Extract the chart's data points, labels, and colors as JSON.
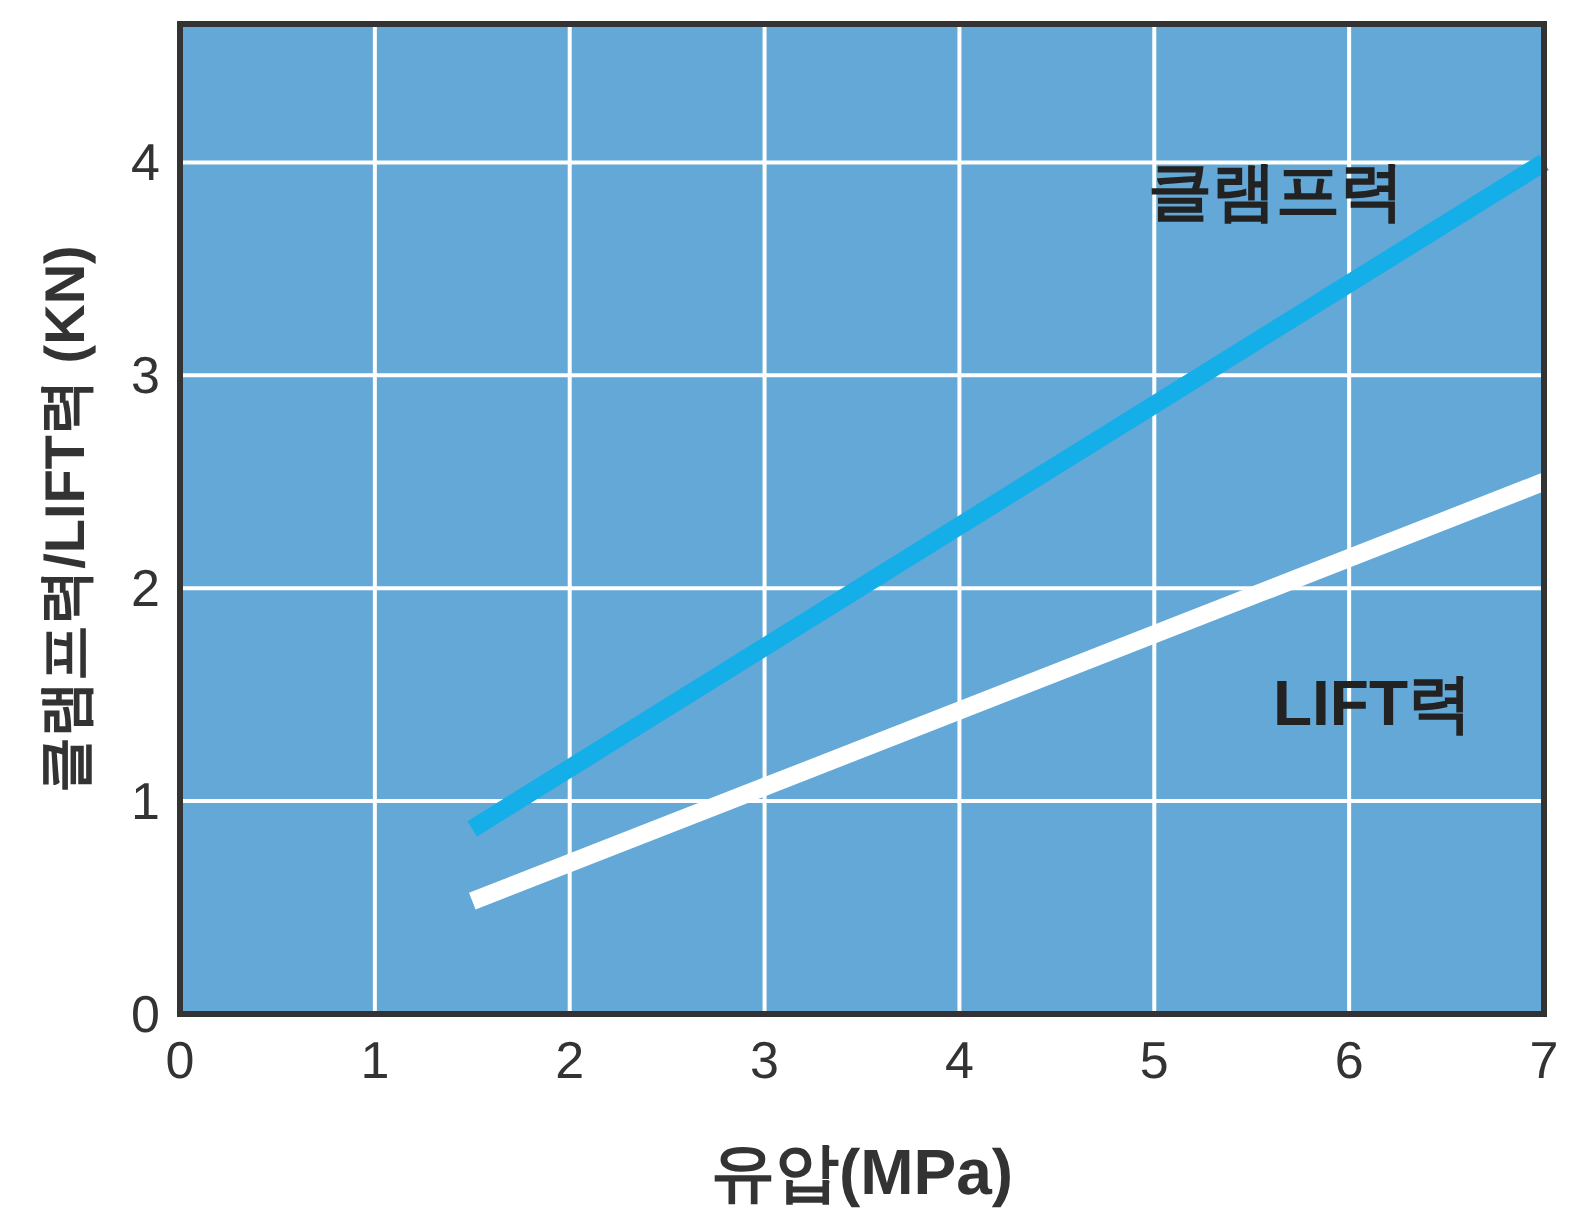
{
  "chart_data": {
    "type": "line",
    "xlabel": "유압(MPa)",
    "ylabel": "클램프력/LIFT력 (KN)",
    "xlim": [
      0,
      7
    ],
    "ylim": [
      0,
      4.65
    ],
    "xticks": [
      0,
      1,
      2,
      3,
      4,
      5,
      6,
      7
    ],
    "yticks": [
      0,
      1,
      2,
      3,
      4
    ],
    "grid": true,
    "marker": "none",
    "line_style": "solid",
    "x": [
      1.5,
      7
    ],
    "series": [
      {
        "name": "클램프력",
        "color": "#14aee8",
        "values": [
          0.87,
          4.0
        ]
      },
      {
        "name": "LIFT력",
        "color": "#ffffff",
        "values": [
          0.53,
          2.5
        ]
      }
    ]
  }
}
